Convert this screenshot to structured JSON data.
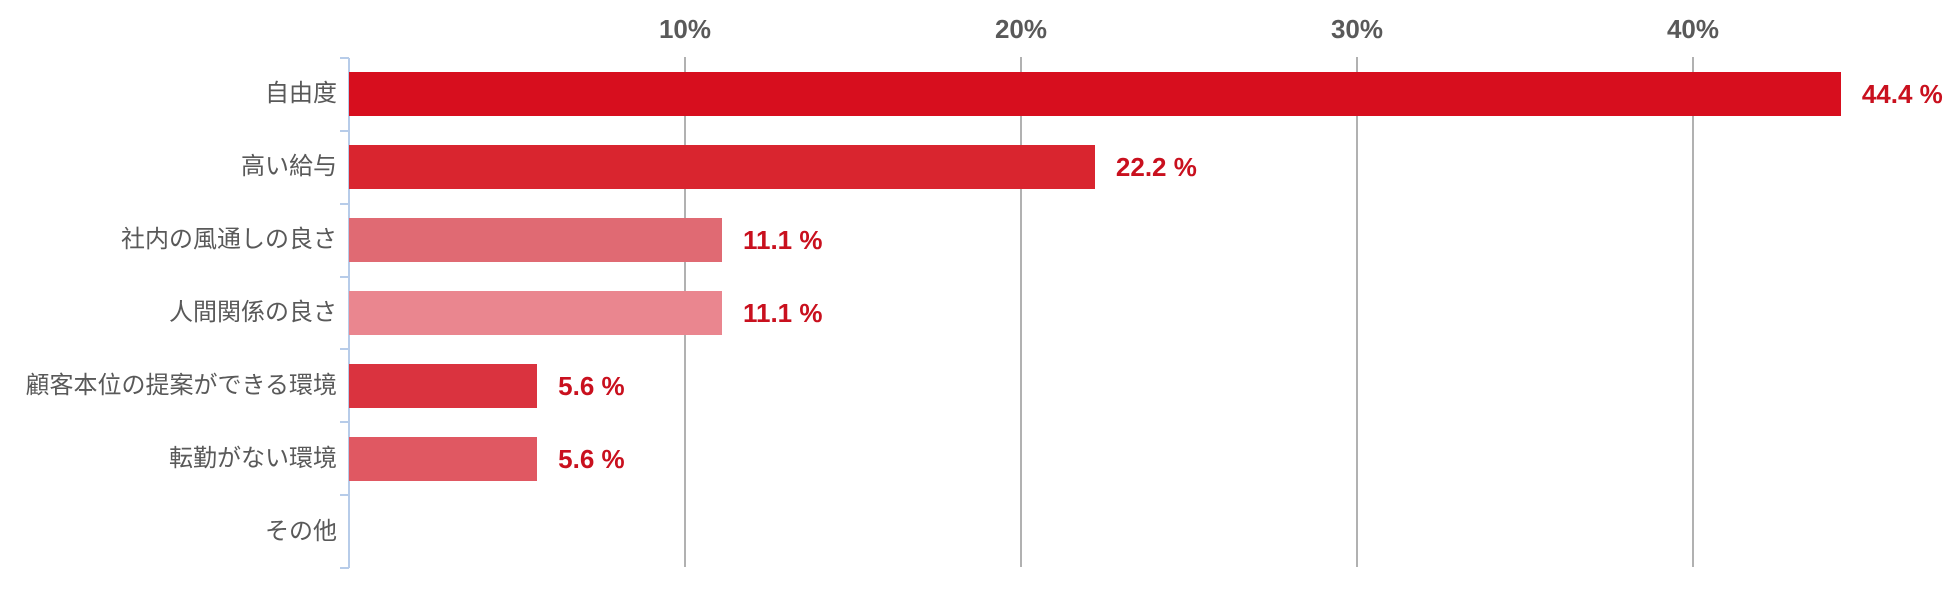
{
  "chart_data": {
    "type": "bar",
    "orientation": "horizontal",
    "title": "",
    "xlabel": "",
    "ylabel": "",
    "legend": "none",
    "grid": "vertical-gridlines",
    "xlim": [
      0,
      47.6
    ],
    "categories": [
      "自由度",
      "高い給与",
      "社内の風通しの良さ",
      "人間関係の良さ",
      "顧客本位の提案ができる環境",
      "転勤がない環境",
      "その他"
    ],
    "values": [
      44.4,
      22.2,
      11.1,
      11.1,
      5.6,
      5.6,
      0
    ],
    "value_labels": [
      "44.4 %",
      "22.2 %",
      "11.1 %",
      "11.1 %",
      "5.6 %",
      "5.6 %",
      ""
    ],
    "bar_colors": [
      "#D70E1E",
      "#D9252F",
      "#E06A73",
      "#EA868F",
      "#DA333F",
      "#E05862",
      ""
    ],
    "x_ticks": [
      {
        "value": 10,
        "label": "10%"
      },
      {
        "value": 20,
        "label": "20%"
      },
      {
        "value": 30,
        "label": "30%"
      },
      {
        "value": 40,
        "label": "40%"
      }
    ],
    "styles": {
      "background": "#FFFFFF",
      "value_label_color": "#C9101E",
      "category_label_color": "#595959",
      "tick_label_color": "#595959",
      "gridline_color": "#B1B1B1",
      "axis_line_color": "#B7CCE9"
    }
  }
}
